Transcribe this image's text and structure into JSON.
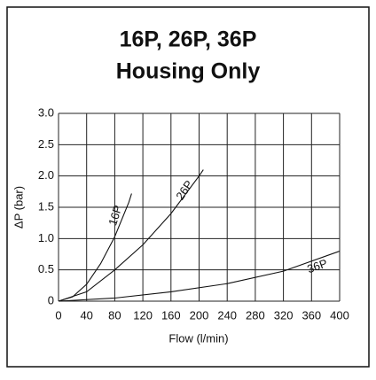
{
  "chart_data": {
    "type": "line",
    "title": "16P, 26P, 36P",
    "subtitle": "Housing Only",
    "xlabel": "Flow (l/min)",
    "ylabel": "ΔP (bar)",
    "xlim": [
      0,
      400
    ],
    "ylim": [
      0,
      3
    ],
    "xticks": [
      0,
      40,
      80,
      120,
      160,
      200,
      240,
      280,
      320,
      360,
      400
    ],
    "yticks": [
      0,
      0.5,
      {
        "value": 1,
        "label": "1.0"
      },
      1.5,
      {
        "value": 2,
        "label": "2.0"
      },
      2.5,
      {
        "value": 3,
        "label": "3.0"
      }
    ],
    "grid": true,
    "series": [
      {
        "name": "16P",
        "color": "#111111",
        "x": [
          0,
          20,
          40,
          60,
          80,
          100,
          104
        ],
        "values": [
          0,
          0.07,
          0.27,
          0.6,
          1.03,
          1.58,
          1.72
        ]
      },
      {
        "name": "26P",
        "color": "#111111",
        "x": [
          0,
          40,
          80,
          120,
          160,
          200,
          206
        ],
        "values": [
          0,
          0.15,
          0.5,
          0.9,
          1.4,
          2.0,
          2.1
        ]
      },
      {
        "name": "36P",
        "color": "#111111",
        "x": [
          0,
          80,
          160,
          240,
          320,
          400
        ],
        "values": [
          0,
          0.05,
          0.15,
          0.28,
          0.48,
          0.8
        ]
      }
    ]
  }
}
